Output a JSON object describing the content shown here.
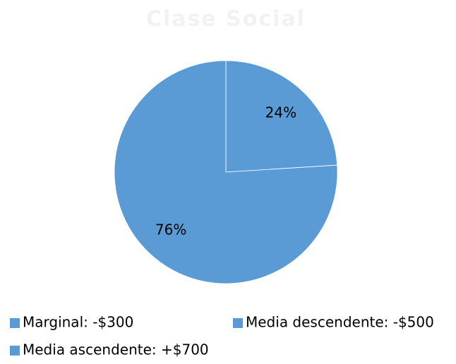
{
  "chart_data": {
    "type": "pie",
    "title": "Clase Social",
    "categories": [
      "Marginal: -$300",
      "Media descendente: -$500",
      "Media ascendente: +$700"
    ],
    "values": [
      24,
      76,
      null
    ],
    "value_labels": [
      "24%",
      "76%",
      null
    ],
    "color": "#5b9bd5",
    "legend": "bottom"
  }
}
